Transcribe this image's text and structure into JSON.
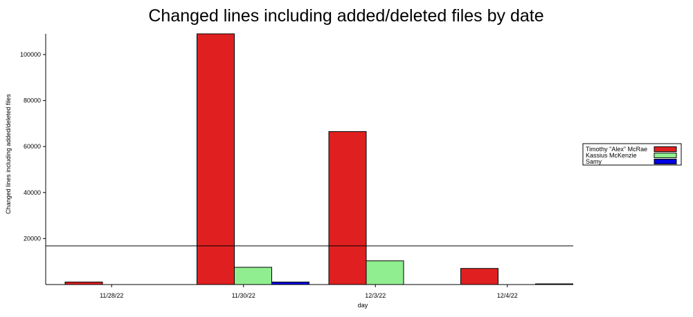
{
  "chart_data": {
    "type": "bar",
    "title": "Changed lines including added/deleted files by date",
    "xlabel": "day",
    "ylabel": "Changed lines including added/deleted files",
    "categories": [
      "11/28/22",
      "11/30/22",
      "12/3/22",
      "12/4/22"
    ],
    "series": [
      {
        "name": "Timothy \"Alex\" McRae",
        "color": "#e02020",
        "values": [
          1100,
          109000,
          66500,
          7000
        ]
      },
      {
        "name": "Kassius McKenzie",
        "color": "#90ee90",
        "values": [
          0,
          7500,
          10300,
          0
        ]
      },
      {
        "name": "Samy",
        "color": "#0000e0",
        "values": [
          0,
          1100,
          0,
          300
        ]
      }
    ],
    "yticks": [
      20000,
      40000,
      60000,
      80000,
      100000
    ],
    "ylim": [
      0,
      109000
    ],
    "reference_line": 16800,
    "grid": false,
    "legend_position": "right"
  }
}
